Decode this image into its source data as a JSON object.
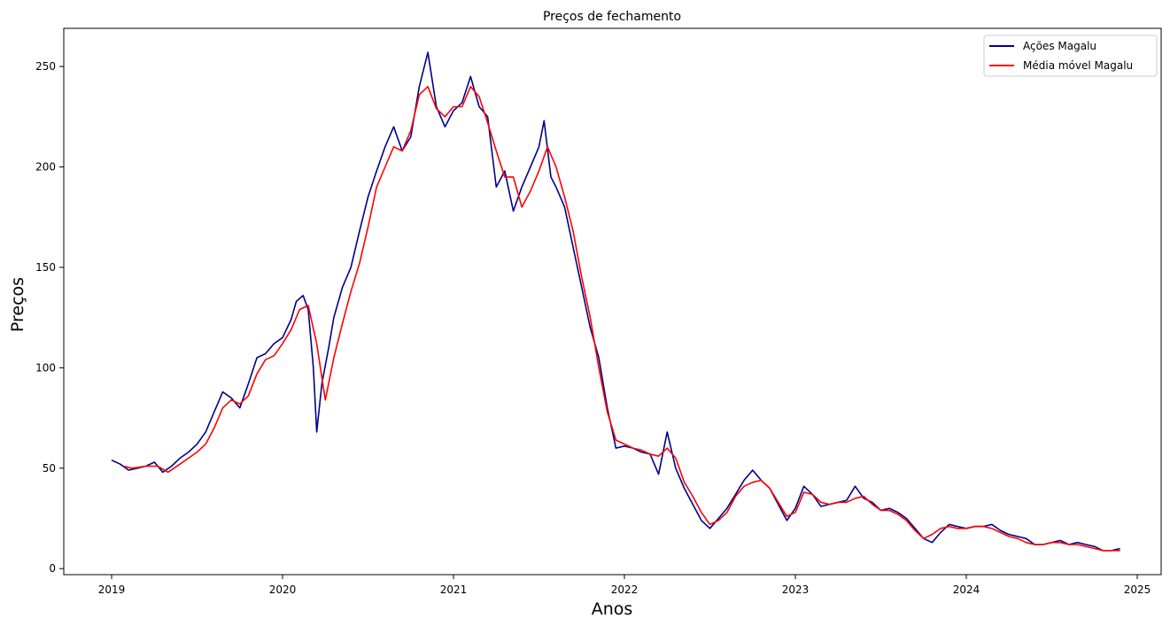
{
  "chart_data": {
    "type": "line",
    "title": "Preços de fechamento",
    "xlabel": "Anos",
    "ylabel": "Preços",
    "xlim": [
      2018.72,
      2025.14
    ],
    "ylim": [
      -3,
      269
    ],
    "xticks": [
      2019,
      2020,
      2021,
      2022,
      2023,
      2024,
      2025
    ],
    "yticks": [
      0,
      50,
      100,
      150,
      200,
      250
    ],
    "legend_position": "top-right",
    "grid": false,
    "series": [
      {
        "name": "Ações Magalu",
        "color": "#00008b",
        "points": [
          [
            2019.0,
            54
          ],
          [
            2019.05,
            52
          ],
          [
            2019.1,
            49
          ],
          [
            2019.15,
            50
          ],
          [
            2019.2,
            51
          ],
          [
            2019.25,
            53
          ],
          [
            2019.3,
            48
          ],
          [
            2019.35,
            51
          ],
          [
            2019.4,
            55
          ],
          [
            2019.45,
            58
          ],
          [
            2019.5,
            62
          ],
          [
            2019.55,
            68
          ],
          [
            2019.6,
            78
          ],
          [
            2019.65,
            88
          ],
          [
            2019.7,
            85
          ],
          [
            2019.75,
            80
          ],
          [
            2019.8,
            92
          ],
          [
            2019.85,
            105
          ],
          [
            2019.9,
            107
          ],
          [
            2019.95,
            112
          ],
          [
            2020.0,
            115
          ],
          [
            2020.05,
            124
          ],
          [
            2020.08,
            133
          ],
          [
            2020.12,
            136
          ],
          [
            2020.15,
            129
          ],
          [
            2020.18,
            100
          ],
          [
            2020.2,
            68
          ],
          [
            2020.23,
            92
          ],
          [
            2020.27,
            110
          ],
          [
            2020.3,
            125
          ],
          [
            2020.35,
            140
          ],
          [
            2020.4,
            150
          ],
          [
            2020.45,
            168
          ],
          [
            2020.5,
            185
          ],
          [
            2020.55,
            198
          ],
          [
            2020.6,
            210
          ],
          [
            2020.65,
            220
          ],
          [
            2020.7,
            208
          ],
          [
            2020.75,
            215
          ],
          [
            2020.8,
            240
          ],
          [
            2020.85,
            257
          ],
          [
            2020.9,
            230
          ],
          [
            2020.95,
            220
          ],
          [
            2021.0,
            228
          ],
          [
            2021.05,
            232
          ],
          [
            2021.1,
            245
          ],
          [
            2021.15,
            230
          ],
          [
            2021.2,
            225
          ],
          [
            2021.25,
            190
          ],
          [
            2021.3,
            198
          ],
          [
            2021.35,
            178
          ],
          [
            2021.4,
            190
          ],
          [
            2021.45,
            200
          ],
          [
            2021.5,
            210
          ],
          [
            2021.53,
            223
          ],
          [
            2021.57,
            195
          ],
          [
            2021.6,
            190
          ],
          [
            2021.65,
            180
          ],
          [
            2021.7,
            160
          ],
          [
            2021.75,
            140
          ],
          [
            2021.8,
            120
          ],
          [
            2021.85,
            105
          ],
          [
            2021.9,
            80
          ],
          [
            2021.95,
            60
          ],
          [
            2022.0,
            61
          ],
          [
            2022.05,
            60
          ],
          [
            2022.1,
            58
          ],
          [
            2022.15,
            57
          ],
          [
            2022.2,
            47
          ],
          [
            2022.25,
            68
          ],
          [
            2022.3,
            50
          ],
          [
            2022.35,
            40
          ],
          [
            2022.4,
            32
          ],
          [
            2022.45,
            24
          ],
          [
            2022.5,
            20
          ],
          [
            2022.55,
            25
          ],
          [
            2022.6,
            30
          ],
          [
            2022.65,
            37
          ],
          [
            2022.7,
            44
          ],
          [
            2022.75,
            49
          ],
          [
            2022.8,
            44
          ],
          [
            2022.85,
            40
          ],
          [
            2022.9,
            32
          ],
          [
            2022.95,
            24
          ],
          [
            2023.0,
            30
          ],
          [
            2023.05,
            41
          ],
          [
            2023.1,
            37
          ],
          [
            2023.15,
            31
          ],
          [
            2023.2,
            32
          ],
          [
            2023.25,
            33
          ],
          [
            2023.3,
            34
          ],
          [
            2023.35,
            41
          ],
          [
            2023.4,
            35
          ],
          [
            2023.45,
            33
          ],
          [
            2023.5,
            29
          ],
          [
            2023.55,
            30
          ],
          [
            2023.6,
            28
          ],
          [
            2023.65,
            25
          ],
          [
            2023.7,
            20
          ],
          [
            2023.75,
            15
          ],
          [
            2023.8,
            13
          ],
          [
            2023.85,
            18
          ],
          [
            2023.9,
            22
          ],
          [
            2023.95,
            21
          ],
          [
            2024.0,
            20
          ],
          [
            2024.05,
            21
          ],
          [
            2024.1,
            21
          ],
          [
            2024.15,
            22
          ],
          [
            2024.2,
            19
          ],
          [
            2024.25,
            17
          ],
          [
            2024.3,
            16
          ],
          [
            2024.35,
            15
          ],
          [
            2024.4,
            12
          ],
          [
            2024.45,
            12
          ],
          [
            2024.5,
            13
          ],
          [
            2024.55,
            14
          ],
          [
            2024.6,
            12
          ],
          [
            2024.65,
            13
          ],
          [
            2024.7,
            12
          ],
          [
            2024.75,
            11
          ],
          [
            2024.8,
            9
          ],
          [
            2024.85,
            9
          ],
          [
            2024.9,
            10
          ]
        ]
      },
      {
        "name": "Média móvel Magalu",
        "color": "#ff0000",
        "points": [
          [
            2019.07,
            51
          ],
          [
            2019.12,
            50
          ],
          [
            2019.2,
            51
          ],
          [
            2019.27,
            51
          ],
          [
            2019.33,
            48
          ],
          [
            2019.4,
            52
          ],
          [
            2019.45,
            55
          ],
          [
            2019.5,
            58
          ],
          [
            2019.55,
            62
          ],
          [
            2019.6,
            70
          ],
          [
            2019.65,
            80
          ],
          [
            2019.7,
            84
          ],
          [
            2019.75,
            82
          ],
          [
            2019.8,
            86
          ],
          [
            2019.85,
            97
          ],
          [
            2019.9,
            104
          ],
          [
            2019.95,
            106
          ],
          [
            2020.0,
            112
          ],
          [
            2020.05,
            119
          ],
          [
            2020.1,
            129
          ],
          [
            2020.15,
            131
          ],
          [
            2020.2,
            112
          ],
          [
            2020.25,
            84
          ],
          [
            2020.3,
            105
          ],
          [
            2020.35,
            122
          ],
          [
            2020.4,
            138
          ],
          [
            2020.45,
            152
          ],
          [
            2020.5,
            170
          ],
          [
            2020.55,
            190
          ],
          [
            2020.6,
            200
          ],
          [
            2020.65,
            210
          ],
          [
            2020.7,
            208
          ],
          [
            2020.75,
            218
          ],
          [
            2020.8,
            236
          ],
          [
            2020.85,
            240
          ],
          [
            2020.9,
            229
          ],
          [
            2020.95,
            225
          ],
          [
            2021.0,
            230
          ],
          [
            2021.05,
            230
          ],
          [
            2021.1,
            240
          ],
          [
            2021.15,
            235
          ],
          [
            2021.2,
            222
          ],
          [
            2021.25,
            208
          ],
          [
            2021.3,
            195
          ],
          [
            2021.35,
            195
          ],
          [
            2021.4,
            180
          ],
          [
            2021.45,
            188
          ],
          [
            2021.5,
            198
          ],
          [
            2021.55,
            210
          ],
          [
            2021.6,
            200
          ],
          [
            2021.65,
            185
          ],
          [
            2021.7,
            168
          ],
          [
            2021.75,
            145
          ],
          [
            2021.8,
            125
          ],
          [
            2021.85,
            100
          ],
          [
            2021.9,
            78
          ],
          [
            2021.95,
            64
          ],
          [
            2022.0,
            62
          ],
          [
            2022.05,
            60
          ],
          [
            2022.1,
            59
          ],
          [
            2022.15,
            57
          ],
          [
            2022.2,
            56
          ],
          [
            2022.25,
            60
          ],
          [
            2022.3,
            55
          ],
          [
            2022.35,
            43
          ],
          [
            2022.4,
            36
          ],
          [
            2022.45,
            28
          ],
          [
            2022.5,
            22
          ],
          [
            2022.55,
            24
          ],
          [
            2022.6,
            28
          ],
          [
            2022.65,
            36
          ],
          [
            2022.7,
            41
          ],
          [
            2022.75,
            43
          ],
          [
            2022.8,
            44
          ],
          [
            2022.85,
            40
          ],
          [
            2022.9,
            33
          ],
          [
            2022.95,
            26
          ],
          [
            2023.0,
            28
          ],
          [
            2023.05,
            38
          ],
          [
            2023.1,
            37
          ],
          [
            2023.15,
            33
          ],
          [
            2023.2,
            32
          ],
          [
            2023.25,
            33
          ],
          [
            2023.3,
            33
          ],
          [
            2023.35,
            35
          ],
          [
            2023.4,
            36
          ],
          [
            2023.45,
            32
          ],
          [
            2023.5,
            29
          ],
          [
            2023.55,
            29
          ],
          [
            2023.6,
            27
          ],
          [
            2023.65,
            24
          ],
          [
            2023.7,
            19
          ],
          [
            2023.75,
            15
          ],
          [
            2023.8,
            17
          ],
          [
            2023.85,
            20
          ],
          [
            2023.9,
            21
          ],
          [
            2023.95,
            20
          ],
          [
            2024.0,
            20
          ],
          [
            2024.05,
            21
          ],
          [
            2024.1,
            21
          ],
          [
            2024.15,
            20
          ],
          [
            2024.2,
            18
          ],
          [
            2024.25,
            16
          ],
          [
            2024.3,
            15
          ],
          [
            2024.35,
            13
          ],
          [
            2024.4,
            12
          ],
          [
            2024.45,
            12
          ],
          [
            2024.5,
            13
          ],
          [
            2024.55,
            13
          ],
          [
            2024.6,
            12
          ],
          [
            2024.65,
            12
          ],
          [
            2024.7,
            11
          ],
          [
            2024.75,
            10
          ],
          [
            2024.8,
            9
          ],
          [
            2024.85,
            9
          ],
          [
            2024.9,
            9
          ]
        ]
      }
    ]
  }
}
